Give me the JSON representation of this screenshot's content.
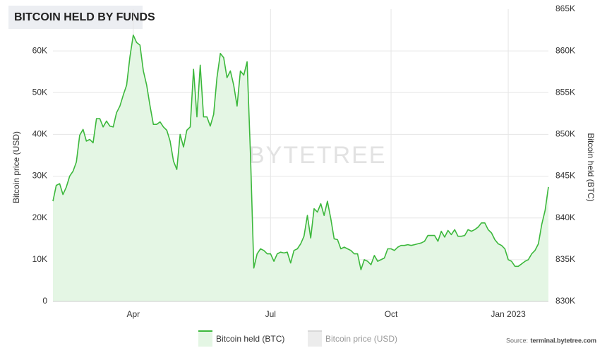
{
  "chart_data": {
    "type": "area",
    "title": "BITCOIN HELD BY FUNDS",
    "ylabel": "Bitcoin price (USD)",
    "y2label": "Bitcoin held (BTC)",
    "watermark": "BYTETREE",
    "source_label": "Source:",
    "source": "terminal.bytetree.com",
    "grid": true,
    "ylim": [
      0,
      70000
    ],
    "yticks": [
      0,
      {
        "value": 10000,
        "label": "10K"
      },
      {
        "value": 20000,
        "label": "20K"
      },
      {
        "value": 30000,
        "label": "30K"
      },
      {
        "value": 40000,
        "label": "40K"
      },
      {
        "value": 50000,
        "label": "50K"
      },
      {
        "value": 60000,
        "label": "60K"
      }
    ],
    "y2lim": [
      830000,
      865000
    ],
    "y2ticks": [
      {
        "value": 830000,
        "label": "830K"
      },
      {
        "value": 835000,
        "label": "835K"
      },
      {
        "value": 840000,
        "label": "840K"
      },
      {
        "value": 845000,
        "label": "845K"
      },
      {
        "value": 850000,
        "label": "850K"
      },
      {
        "value": 855000,
        "label": "855K"
      },
      {
        "value": 860000,
        "label": "860K"
      },
      {
        "value": 865000,
        "label": "865K"
      }
    ],
    "categories": [
      null,
      null,
      null,
      null,
      null,
      null,
      null,
      null,
      null,
      null,
      null,
      null,
      null,
      null,
      null,
      null,
      null,
      null,
      null,
      null,
      null,
      null,
      null,
      null,
      "Apr",
      null,
      null,
      null,
      null,
      null,
      null,
      null,
      null,
      null,
      null,
      null,
      null,
      null,
      null,
      null,
      null,
      null,
      null,
      null,
      null,
      null,
      null,
      null,
      null,
      null,
      null,
      null,
      null,
      null,
      null,
      null,
      null,
      null,
      null,
      null,
      null,
      null,
      null,
      null,
      null,
      "Jul",
      null,
      null,
      null,
      null,
      null,
      null,
      null,
      null,
      null,
      null,
      null,
      null,
      null,
      null,
      null,
      null,
      null,
      null,
      null,
      null,
      null,
      null,
      null,
      null,
      null,
      null,
      null,
      null,
      null,
      null,
      null,
      null,
      null,
      null,
      null,
      "Oct",
      null,
      null,
      null,
      null,
      null,
      null,
      null,
      null,
      null,
      null,
      null,
      null,
      null,
      null,
      null,
      null,
      null,
      null,
      null,
      null,
      null,
      null,
      null,
      null,
      null,
      null,
      null,
      null,
      null,
      null,
      null,
      null,
      null,
      null,
      "Jan 2023",
      null,
      null,
      null,
      null,
      null,
      null,
      null,
      null,
      null,
      null,
      null,
      null
    ],
    "series": [
      {
        "name": "Bitcoin held (BTC)",
        "color": "#3cb83c",
        "fill": "#e4f6e4",
        "axis": "y2",
        "values": [
          842000,
          843900,
          844100,
          842800,
          843700,
          845000,
          845600,
          846700,
          849900,
          850600,
          849200,
          849400,
          849000,
          851900,
          851900,
          850900,
          851600,
          851000,
          850900,
          852600,
          853400,
          854700,
          855900,
          859300,
          861900,
          861000,
          860700,
          857600,
          855900,
          853400,
          851200,
          851200,
          851500,
          850900,
          850500,
          849200,
          846800,
          845800,
          850000,
          848500,
          850500,
          850900,
          857800,
          852100,
          858300,
          852100,
          852100,
          851000,
          852400,
          856800,
          859700,
          859200,
          856800,
          857600,
          855900,
          853400,
          857600,
          857100,
          858700,
          847500,
          834000,
          835700,
          836300,
          836100,
          835700,
          835700,
          834800,
          835700,
          835900,
          835800,
          835900,
          834600,
          836100,
          836300,
          836900,
          837800,
          840300,
          837600,
          841100,
          840700,
          841700,
          840300,
          842000,
          839900,
          837500,
          837400,
          836300,
          836500,
          836300,
          836100,
          835700,
          835700,
          833800,
          835000,
          834800,
          834400,
          835500,
          834800,
          835000,
          835200,
          836300,
          836300,
          836100,
          836500,
          836700,
          836700,
          836800,
          836700,
          836800,
          836900,
          837000,
          837200,
          837900,
          837900,
          837900,
          837200,
          838400,
          837700,
          838500,
          838000,
          838600,
          837800,
          837800,
          837900,
          838600,
          838400,
          838600,
          838900,
          839400,
          839400,
          838600,
          838200,
          837400,
          836900,
          836700,
          836300,
          835000,
          834800,
          834200,
          834200,
          834500,
          834800,
          835000,
          835700,
          836100,
          836900,
          839200,
          840900,
          843700
        ]
      },
      {
        "name": "Bitcoin price (USD)",
        "color": "#d8d8d8",
        "fill": "#ececec",
        "hidden": true
      }
    ]
  }
}
